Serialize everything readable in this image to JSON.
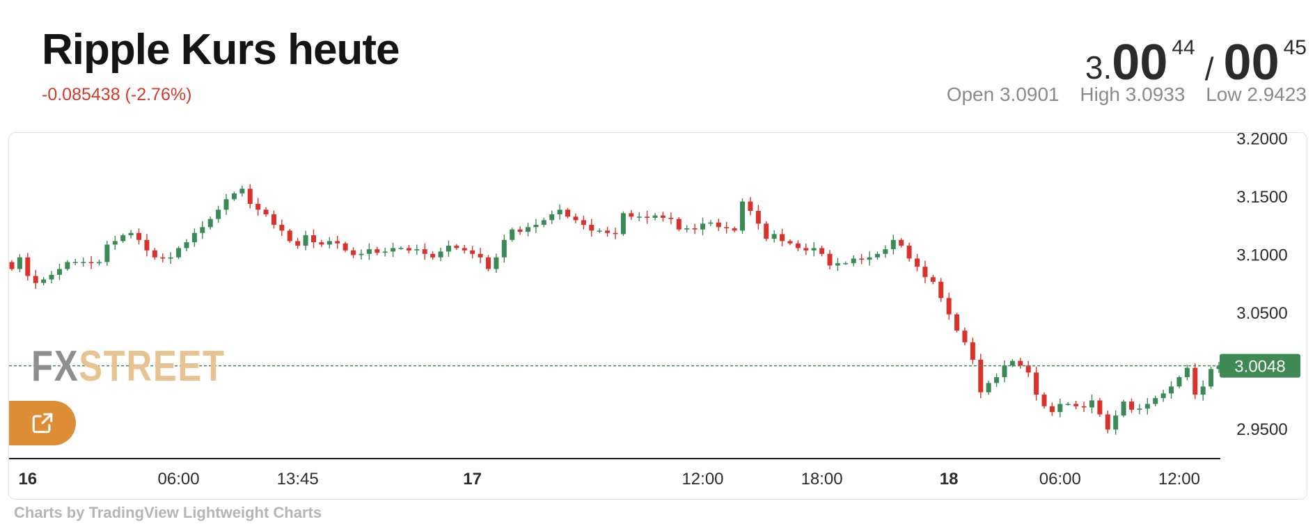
{
  "header": {
    "title": "Ripple Kurs heute",
    "change": "-0.085438 (-2.76%)",
    "price": {
      "prefix": "3.",
      "bid_big": "00",
      "bid_small": "44",
      "separator": "/",
      "ask_big": "00",
      "ask_small": "45"
    },
    "ohlc": {
      "open": "Open 3.0901",
      "high": "High 3.0933",
      "low": "Low 2.9423"
    }
  },
  "watermark": {
    "part1": "FX",
    "part2": "STREET"
  },
  "external_link_icon": "external-link-icon",
  "credit": "Charts by TradingView Lightweight Charts",
  "colors": {
    "up": "#3a8a55",
    "down": "#d8322b",
    "change_text": "#d23a2e",
    "current_price_label": "#3f8a54",
    "button": "#dd8d33",
    "watermark_fx": "#8e8e8e",
    "watermark_street": "#e7c392"
  },
  "chart_data": {
    "type": "candlestick",
    "ylim": [
      2.925,
      3.205
    ],
    "y_ticks": [
      "3.2000",
      "3.1500",
      "3.1000",
      "3.0500",
      "2.9500"
    ],
    "x_ticks": [
      {
        "label": "16",
        "bold": true,
        "index": 2
      },
      {
        "label": "06:00",
        "bold": false,
        "index": 21
      },
      {
        "label": "13:45",
        "bold": false,
        "index": 36
      },
      {
        "label": "17",
        "bold": true,
        "index": 58
      },
      {
        "label": "12:00",
        "bold": false,
        "index": 87
      },
      {
        "label": "18:00",
        "bold": false,
        "index": 102
      },
      {
        "label": "18",
        "bold": true,
        "index": 118
      },
      {
        "label": "06:00",
        "bold": false,
        "index": 132
      },
      {
        "label": "12:00",
        "bold": false,
        "index": 147
      }
    ],
    "current_price": "3.0048",
    "closes": [
      3.088,
      3.098,
      3.082,
      3.076,
      3.079,
      3.083,
      3.088,
      3.094,
      3.094,
      3.094,
      3.093,
      3.094,
      3.109,
      3.112,
      3.117,
      3.119,
      3.113,
      3.104,
      3.098,
      3.097,
      3.098,
      3.106,
      3.111,
      3.119,
      3.124,
      3.131,
      3.139,
      3.148,
      3.153,
      3.157,
      3.144,
      3.139,
      3.135,
      3.126,
      3.121,
      3.112,
      3.108,
      3.117,
      3.111,
      3.109,
      3.112,
      3.11,
      3.104,
      3.1,
      3.101,
      3.105,
      3.102,
      3.103,
      3.106,
      3.106,
      3.104,
      3.105,
      3.101,
      3.098,
      3.103,
      3.108,
      3.106,
      3.104,
      3.101,
      3.098,
      3.088,
      3.098,
      3.113,
      3.122,
      3.12,
      3.124,
      3.126,
      3.13,
      3.135,
      3.139,
      3.133,
      3.13,
      3.126,
      3.121,
      3.121,
      3.119,
      3.118,
      3.136,
      3.133,
      3.133,
      3.132,
      3.134,
      3.132,
      3.131,
      3.122,
      3.123,
      3.122,
      3.127,
      3.128,
      3.124,
      3.123,
      3.121,
      3.146,
      3.138,
      3.127,
      3.114,
      3.118,
      3.112,
      3.11,
      3.106,
      3.104,
      3.106,
      3.101,
      3.091,
      3.093,
      3.093,
      3.097,
      3.096,
      3.098,
      3.101,
      3.105,
      3.113,
      3.108,
      3.097,
      3.09,
      3.081,
      3.077,
      3.063,
      3.049,
      3.035,
      3.025,
      3.01,
      2.982,
      2.99,
      2.995,
      3.005,
      3.009,
      3.005,
      2.999,
      2.98,
      2.97,
      2.965,
      2.972,
      2.972,
      2.97,
      2.969,
      2.975,
      2.963,
      2.95,
      2.962,
      2.974,
      2.967,
      2.968,
      2.972,
      2.977,
      2.981,
      2.987,
      2.995,
      3.003,
      2.98,
      2.987,
      3.002,
      3.0048
    ]
  }
}
